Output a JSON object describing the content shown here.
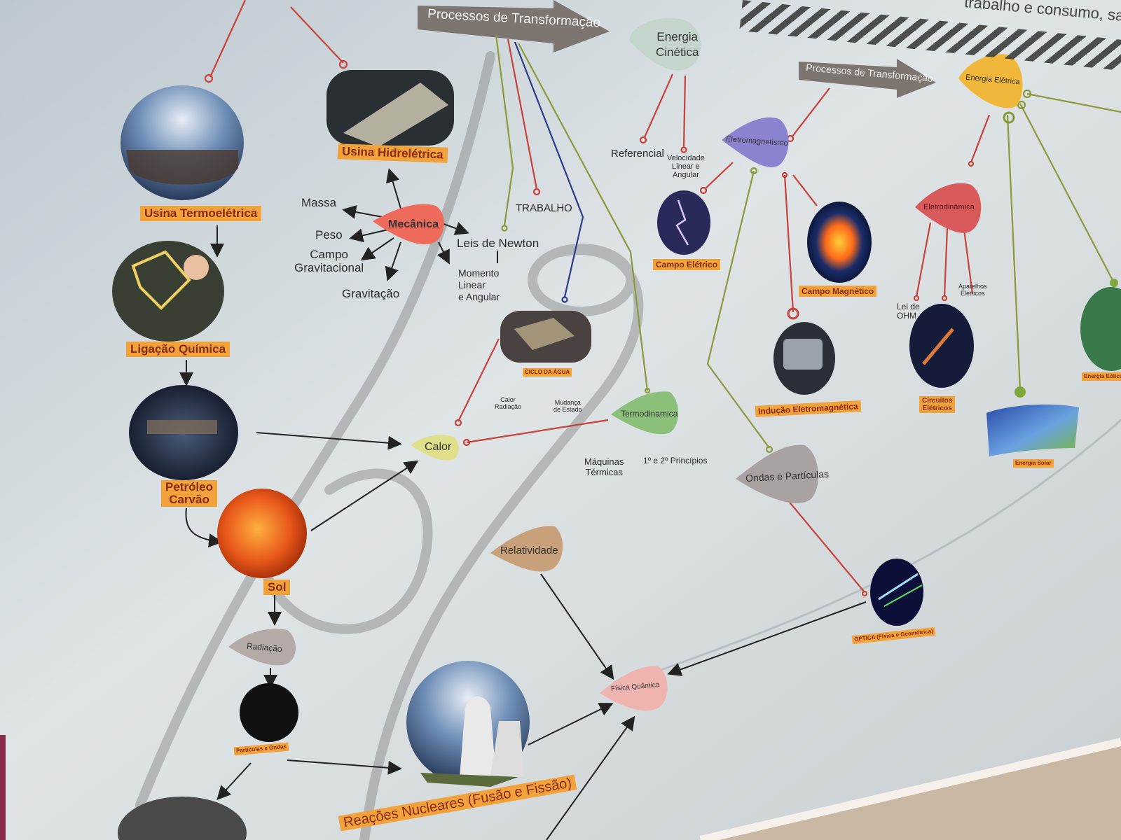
{
  "top": {
    "corner_text": "trabalho e consumo, sa",
    "arrow_transform_1": "Processos de Transformação",
    "arrow_transform_2": "Processos de Transformação"
  },
  "nodes": {
    "energia_cinetica": "Energia\nCinética",
    "energia_eletrica": "Energia Elétrica",
    "eletromagnetismo": "Eletromagnetismo",
    "eletrodinamica": "Eletrodinâmica",
    "mecanica": "Mecânica",
    "calor": "Calor",
    "termodinamica": "Termodinamica",
    "ondas_particulas": "Ondas e Partículas",
    "relatividade": "Relatividade",
    "radiacao": "Radiação",
    "fisica_quantica": "Física Quântica"
  },
  "terms": {
    "massa": "Massa",
    "peso": "Peso",
    "campo_gravitacional": "Campo\nGravitacional",
    "gravitacao": "Gravitação",
    "leis_newton": "Leis de Newton",
    "momento": "Momento\nLinear\ne Angular",
    "trabalho": "TRABALHO",
    "referencial": "Referencial",
    "velocidade": "Velocidade\nLinear e\nAngular",
    "maquinas_termicas": "Máquinas\nTérmicas",
    "principios": "1º e 2º Princípios",
    "calor_radiacao": "Calor\nRadiação",
    "mudanca_estado": "Mudança\nde Estado",
    "lei_ohm": "Lei de\nOHM",
    "aparelhos_eletricos": "Aparelhos\nElétricos"
  },
  "tags": {
    "usina_termoeletrica": "Usina Termoelétrica",
    "usina_hidreletrica": "Usina Hidrelétrica",
    "ligacao_quimica": "Ligação Química",
    "petroleo_carvao": "Petróleo\nCarvão",
    "sol": "Sol",
    "particulas_ondas": "Partículas e Ondas",
    "reacoes_nucleares": "Reações Nucleares (Fusão e Fissão)",
    "ciclo_agua": "CICLO DA ÁGUA",
    "campo_eletrico": "Campo Elétrico",
    "campo_magnetico": "Campo Magnético",
    "inducao_eletromagnetica": "Indução Eletromagnética",
    "circuitos_eletricos": "Circuitos\nElétricos",
    "energia_solar": "Energia Solar",
    "energia_eolica": "Energia Eólica",
    "optica": "ÓPTICA (Física e Geométrica)"
  },
  "colors": {
    "wall": "#cfd6da",
    "orange_tag": "#f2a23a",
    "arrow_gray": "#7d7570",
    "line_red": "#c8413b",
    "line_green": "#8a9a3a",
    "line_navy": "#2a3a8a"
  }
}
